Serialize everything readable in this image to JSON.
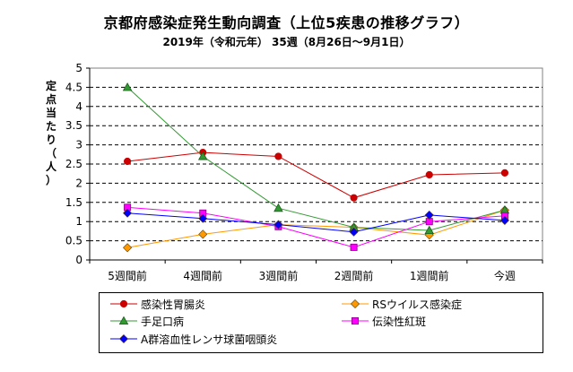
{
  "header": {
    "title": "京都府感染症発生動向調査（上位5疾患の推移グラフ）",
    "subtitle": "2019年（令和元年） 35週（8月26日～9月1日）"
  },
  "chart_data": {
    "type": "line",
    "title": "京都府感染症発生動向調査（上位5疾患の推移グラフ）",
    "subtitle": "2019年（令和元年） 35週（8月26日～9月1日）",
    "ylabel": "定点当たり（人）",
    "xlabel": "",
    "categories": [
      "5週間前",
      "4週間前",
      "3週間前",
      "2週間前",
      "1週間前",
      "今週"
    ],
    "ylim": [
      0,
      5
    ],
    "yticks": [
      "0",
      "0.5",
      "1",
      "1.5",
      "2",
      "2.5",
      "3",
      "3.5",
      "4",
      "4.5",
      "5"
    ],
    "grid": true,
    "legend_position": "bottom",
    "series": [
      {
        "name": "感染性胃腸炎",
        "color": "#cc0000",
        "marker": "circle",
        "values": [
          2.57,
          2.8,
          2.7,
          1.62,
          2.22,
          2.27
        ]
      },
      {
        "name": "RSウイルス感染症",
        "color": "#ff9900",
        "marker": "diamond",
        "values": [
          0.32,
          0.67,
          0.92,
          0.85,
          0.65,
          1.3
        ]
      },
      {
        "name": "手足口病",
        "color": "#339933",
        "marker": "triangle",
        "values": [
          4.5,
          2.7,
          1.35,
          0.85,
          0.77,
          1.3
        ]
      },
      {
        "name": "伝染性紅斑",
        "color": "#ff00ff",
        "marker": "square",
        "values": [
          1.37,
          1.22,
          0.87,
          0.33,
          1.0,
          1.15
        ]
      },
      {
        "name": "A群溶血性レンサ球菌咽頭炎",
        "color": "#0000ff",
        "marker": "diamond",
        "values": [
          1.22,
          1.08,
          0.92,
          0.73,
          1.17,
          1.03
        ]
      }
    ]
  }
}
